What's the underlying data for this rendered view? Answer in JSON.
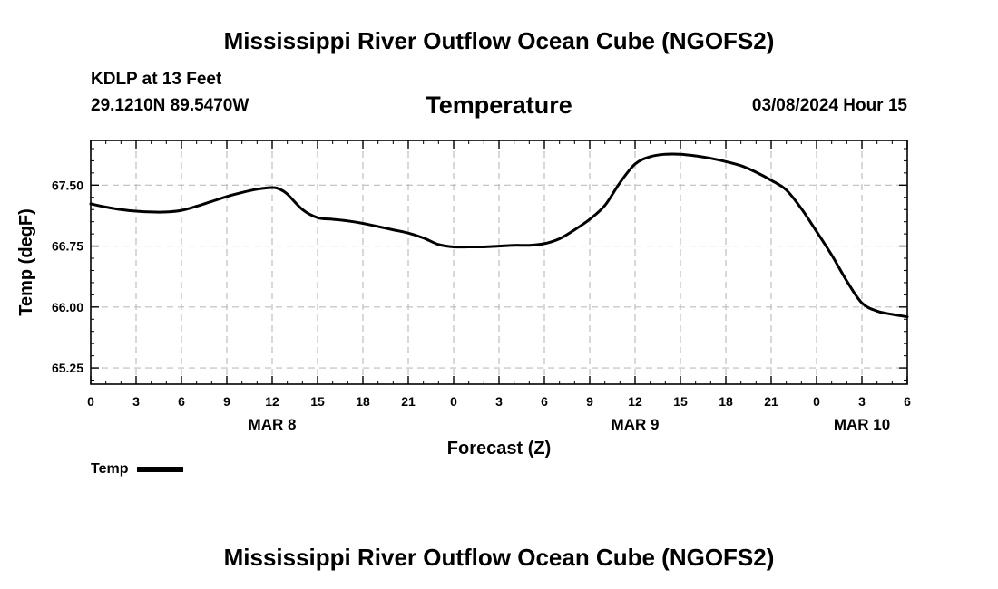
{
  "header": {
    "title": "Mississippi River Outflow Ocean Cube (NGOFS2)",
    "station": "KDLP at 13 Feet",
    "coords": "29.1210N  89.5470W",
    "subtitle": "Temperature",
    "run_time": "03/08/2024 Hour 15"
  },
  "footer": {
    "title": "Mississippi River Outflow Ocean Cube (NGOFS2)"
  },
  "legend": {
    "label": "Temp",
    "color": "#000000"
  },
  "chart_data": {
    "type": "line",
    "title": "Temperature",
    "xlabel": "Forecast (Z)",
    "ylabel": "Temp (degF)",
    "xlim": [
      0,
      54
    ],
    "ylim": [
      65.05,
      68.05
    ],
    "grid": true,
    "x_ticks": [
      0,
      3,
      6,
      9,
      12,
      15,
      18,
      21,
      24,
      27,
      30,
      33,
      36,
      39,
      42,
      45,
      48,
      51,
      54
    ],
    "x_tick_labels": [
      "0",
      "3",
      "6",
      "9",
      "12",
      "15",
      "18",
      "21",
      "0",
      "3",
      "6",
      "9",
      "12",
      "15",
      "18",
      "21",
      "0",
      "3",
      "6"
    ],
    "date_labels": [
      {
        "x": 12,
        "label": "MAR 8"
      },
      {
        "x": 36,
        "label": "MAR 9"
      },
      {
        "x": 51,
        "label": "MAR 10"
      }
    ],
    "y_ticks": [
      65.25,
      66.0,
      66.75,
      67.5
    ],
    "y_tick_labels": [
      "65.25",
      "66.00",
      "66.75",
      "67.50"
    ],
    "series": [
      {
        "name": "Temp",
        "x": [
          0,
          1,
          2,
          3,
          4,
          5,
          6,
          7,
          8,
          9,
          10,
          11,
          12,
          12.5,
          13,
          14,
          15,
          16,
          17,
          18,
          19,
          20,
          21,
          22,
          23,
          24,
          25,
          26,
          27,
          28,
          29,
          30,
          31,
          32,
          33,
          34,
          35,
          36,
          37,
          38,
          39,
          40,
          41,
          42,
          43,
          44,
          45,
          46,
          47,
          48,
          49,
          50,
          51,
          52,
          53,
          54
        ],
        "values": [
          67.27,
          67.23,
          67.2,
          67.18,
          67.17,
          67.17,
          67.19,
          67.24,
          67.3,
          67.36,
          67.41,
          67.45,
          67.47,
          67.45,
          67.39,
          67.2,
          67.1,
          67.08,
          67.06,
          67.03,
          66.99,
          66.95,
          66.91,
          66.85,
          66.77,
          66.74,
          66.74,
          66.74,
          66.75,
          66.76,
          66.76,
          66.78,
          66.84,
          66.95,
          67.08,
          67.25,
          67.53,
          67.76,
          67.85,
          67.88,
          67.88,
          67.86,
          67.83,
          67.79,
          67.74,
          67.66,
          67.56,
          67.44,
          67.21,
          66.93,
          66.64,
          66.32,
          66.05,
          65.95,
          65.91,
          65.88
        ]
      }
    ]
  }
}
